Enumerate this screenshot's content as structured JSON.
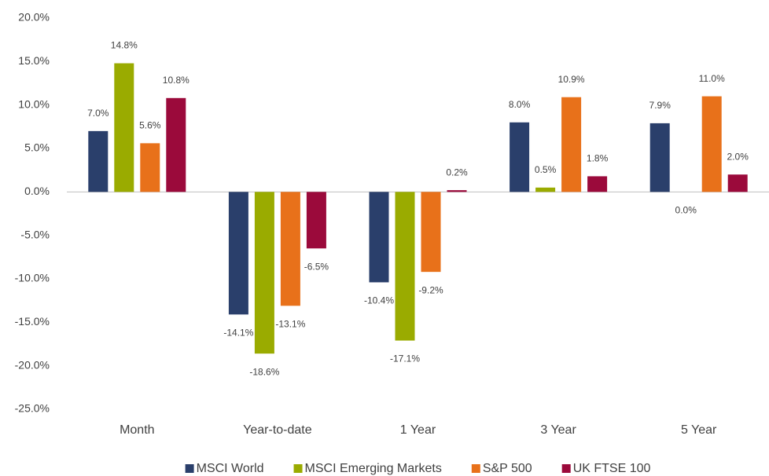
{
  "chart_data": {
    "type": "bar",
    "categories": [
      "Month",
      "Year-to-date",
      "1 Year",
      "3 Year",
      "5 Year"
    ],
    "series": [
      {
        "name": "MSCI World",
        "color": "#2a3f6b",
        "values": [
          7.0,
          -14.1,
          -10.4,
          8.0,
          7.9
        ],
        "value_labels": [
          "7.0%",
          "-14.1%",
          "-10.4%",
          "8.0%",
          "7.9%"
        ]
      },
      {
        "name": "MSCI Emerging Markets",
        "color": "#9aab00",
        "values": [
          14.8,
          -18.6,
          -17.1,
          0.5,
          0.0
        ],
        "value_labels": [
          "14.8%",
          "-18.6%",
          "-17.1%",
          "0.5%",
          "0.0%"
        ]
      },
      {
        "name": "S&P 500",
        "color": "#e8711a",
        "values": [
          5.6,
          -13.1,
          -9.2,
          10.9,
          11.0
        ],
        "value_labels": [
          "5.6%",
          "-13.1%",
          "-9.2%",
          "10.9%",
          "11.0%"
        ]
      },
      {
        "name": "UK FTSE 100",
        "color": "#9b0a3b",
        "values": [
          10.8,
          -6.5,
          0.2,
          1.8,
          2.0
        ],
        "value_labels": [
          "10.8%",
          "-6.5%",
          "0.2%",
          "1.8%",
          "2.0%"
        ]
      }
    ],
    "ylim": [
      -25,
      20
    ],
    "yticks": [
      {
        "value": -25,
        "label": "-25.0%"
      },
      {
        "value": -20,
        "label": "-20.0%"
      },
      {
        "value": -15,
        "label": "-15.0%"
      },
      {
        "value": -10,
        "label": "-10.0%"
      },
      {
        "value": -5,
        "label": "-5.0%"
      },
      {
        "value": 0,
        "label": "0.0%"
      },
      {
        "value": 5,
        "label": "5.0%"
      },
      {
        "value": 10,
        "label": "10.0%"
      },
      {
        "value": 15,
        "label": "15.0%"
      },
      {
        "value": 20,
        "label": "20.0%"
      }
    ],
    "grid": false,
    "legend": "bottom"
  }
}
